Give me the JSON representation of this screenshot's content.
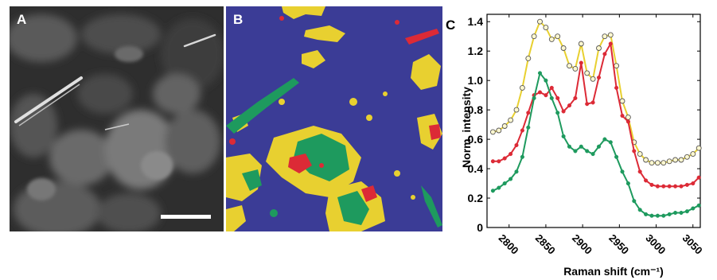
{
  "figure": {
    "panel_a_label": "A",
    "panel_b_label": "B",
    "panel_c_label": "C"
  },
  "colors": {
    "yellow": "#e8d030",
    "red": "#dc2a36",
    "green": "#1e9a5e",
    "map_background": "#3b3c96"
  },
  "chart_data": {
    "type": "line",
    "xlabel": "Raman shift (cm⁻¹)",
    "ylabel": "Norm. intensity",
    "xlim": [
      2770,
      3060
    ],
    "ylim": [
      0,
      1.45
    ],
    "xticks": [
      2800,
      2850,
      2900,
      2950,
      3000,
      3050
    ],
    "yticks": [
      0,
      0.2,
      0.4,
      0.6,
      0.8,
      1.0,
      1.2,
      1.4
    ],
    "ytick_labels": [
      "0",
      "0.2",
      "0.4",
      "0.6",
      "0.8",
      "1.0",
      "1.2",
      "1.4"
    ],
    "grid": false,
    "series": [
      {
        "color": "#e8d030",
        "marker": "open-circle",
        "x": [
          2778,
          2786,
          2794,
          2802,
          2810,
          2818,
          2826,
          2834,
          2842,
          2850,
          2858,
          2866,
          2874,
          2882,
          2890,
          2898,
          2906,
          2914,
          2922,
          2930,
          2938,
          2946,
          2954,
          2962,
          2970,
          2978,
          2986,
          2994,
          3002,
          3010,
          3018,
          3026,
          3034,
          3042,
          3050,
          3058
        ],
        "y": [
          0.65,
          0.66,
          0.69,
          0.73,
          0.8,
          0.95,
          1.15,
          1.3,
          1.4,
          1.36,
          1.28,
          1.3,
          1.22,
          1.1,
          1.08,
          1.25,
          1.05,
          1.01,
          1.22,
          1.3,
          1.31,
          1.1,
          0.86,
          0.75,
          0.58,
          0.5,
          0.46,
          0.44,
          0.44,
          0.44,
          0.45,
          0.46,
          0.46,
          0.48,
          0.5,
          0.54
        ]
      },
      {
        "color": "#dc2a36",
        "marker": "filled-circle",
        "x": [
          2778,
          2786,
          2794,
          2802,
          2810,
          2818,
          2826,
          2834,
          2842,
          2850,
          2858,
          2866,
          2874,
          2882,
          2890,
          2898,
          2906,
          2914,
          2922,
          2930,
          2938,
          2946,
          2954,
          2962,
          2970,
          2978,
          2986,
          2994,
          3002,
          3010,
          3018,
          3026,
          3034,
          3042,
          3050,
          3058
        ],
        "y": [
          0.45,
          0.45,
          0.47,
          0.5,
          0.56,
          0.66,
          0.78,
          0.9,
          0.92,
          0.9,
          0.95,
          0.88,
          0.79,
          0.83,
          0.88,
          1.12,
          0.84,
          0.85,
          1.02,
          1.18,
          1.25,
          0.95,
          0.76,
          0.72,
          0.52,
          0.38,
          0.32,
          0.29,
          0.28,
          0.28,
          0.28,
          0.28,
          0.28,
          0.29,
          0.3,
          0.34
        ]
      },
      {
        "color": "#1e9a5e",
        "marker": "filled-circle",
        "x": [
          2778,
          2786,
          2794,
          2802,
          2810,
          2818,
          2826,
          2834,
          2842,
          2850,
          2858,
          2866,
          2874,
          2882,
          2890,
          2898,
          2906,
          2914,
          2922,
          2930,
          2938,
          2946,
          2954,
          2962,
          2970,
          2978,
          2986,
          2994,
          3002,
          3010,
          3018,
          3026,
          3034,
          3042,
          3050,
          3058
        ],
        "y": [
          0.25,
          0.27,
          0.3,
          0.33,
          0.38,
          0.48,
          0.68,
          0.88,
          1.05,
          1.0,
          0.88,
          0.78,
          0.62,
          0.55,
          0.52,
          0.55,
          0.52,
          0.5,
          0.55,
          0.6,
          0.58,
          0.48,
          0.38,
          0.3,
          0.18,
          0.12,
          0.09,
          0.08,
          0.08,
          0.08,
          0.09,
          0.1,
          0.1,
          0.11,
          0.13,
          0.15
        ]
      }
    ]
  }
}
